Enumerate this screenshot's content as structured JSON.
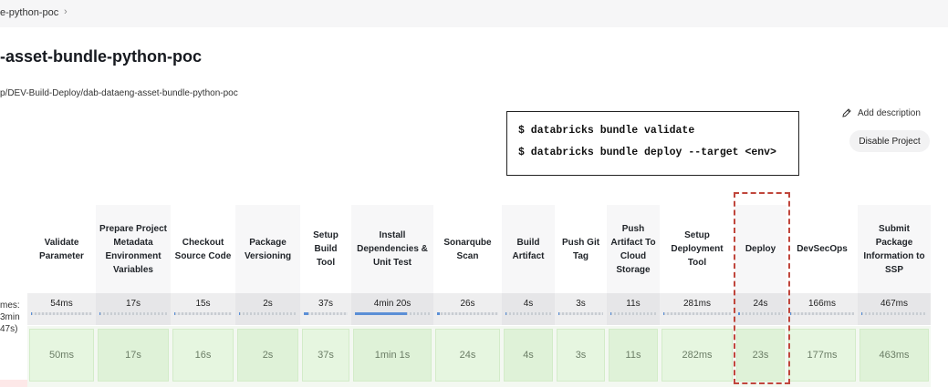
{
  "breadcrumb": {
    "current": "e-python-poc",
    "separator": "›"
  },
  "page": {
    "title": "-asset-bundle-python-poc",
    "full_path": "p/DEV-Build-Deploy/dab-dataeng-asset-bundle-python-poc"
  },
  "actions": {
    "add_description": "Add description",
    "disable_project": "Disable Project"
  },
  "commands": [
    "$ databricks bundle validate",
    "$ databricks bundle deploy --target <env>"
  ],
  "avg_label": {
    "line1": "mes:",
    "line2": "3min",
    "line3": "47s)"
  },
  "stages": [
    {
      "name": "Validate Parameter",
      "avg": "54ms",
      "run": "50ms",
      "avg_fill": 0.0
    },
    {
      "name": "Prepare Project Metadata Environment Variables",
      "avg": "17s",
      "run": "17s",
      "avg_fill": 0.02
    },
    {
      "name": "Checkout Source Code",
      "avg": "15s",
      "run": "16s",
      "avg_fill": 0.02
    },
    {
      "name": "Package Versioning",
      "avg": "2s",
      "run": "2s",
      "avg_fill": 0.0
    },
    {
      "name": "Setup Build Tool",
      "avg": "37s",
      "run": "37s",
      "avg_fill": 0.1
    },
    {
      "name": "Install Dependencies & Unit Test",
      "avg": "4min 20s",
      "run": "1min 1s",
      "avg_fill": 0.7
    },
    {
      "name": "Sonarqube Scan",
      "avg": "26s",
      "run": "24s",
      "avg_fill": 0.05
    },
    {
      "name": "Build Artifact",
      "avg": "4s",
      "run": "4s",
      "avg_fill": 0.0
    },
    {
      "name": "Push Git Tag",
      "avg": "3s",
      "run": "3s",
      "avg_fill": 0.0
    },
    {
      "name": "Push Artifact To Cloud Storage",
      "avg": "11s",
      "run": "11s",
      "avg_fill": 0.02
    },
    {
      "name": "Setup Deployment Tool",
      "avg": "281ms",
      "run": "282ms",
      "avg_fill": 0.0
    },
    {
      "name": "Deploy",
      "avg": "24s",
      "run": "23s",
      "avg_fill": 0.05
    },
    {
      "name": "DevSecOps",
      "avg": "166ms",
      "run": "177ms",
      "avg_fill": 0.0
    },
    {
      "name": "Submit Package Information to SSP",
      "avg": "467ms",
      "run": "463ms",
      "avg_fill": 0.0
    }
  ],
  "colors": {
    "success_cell": "#e6f6e0",
    "progress": "#5b8fd6",
    "highlight": "#c0463c"
  }
}
